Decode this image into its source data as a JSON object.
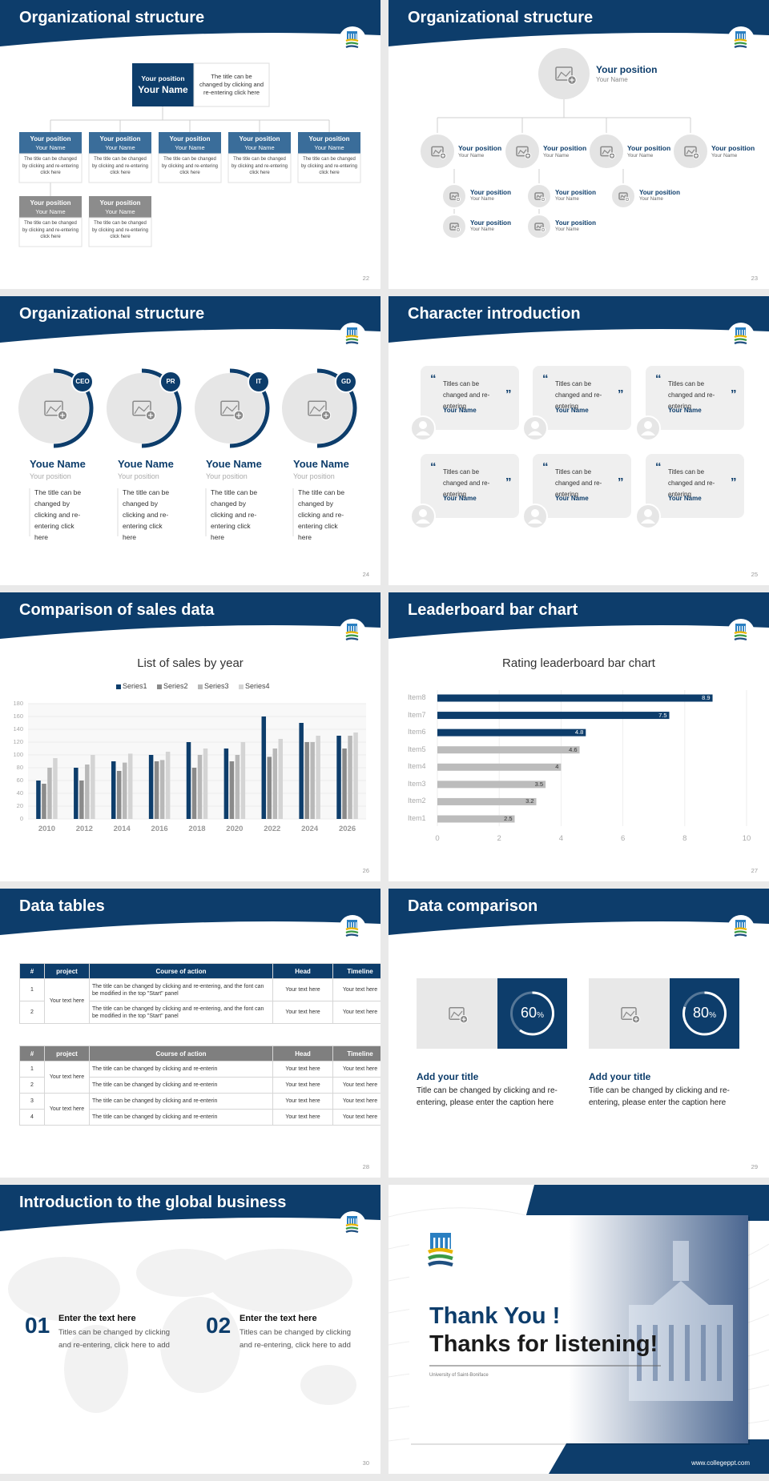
{
  "slides": [
    {
      "title": "Organizational structure",
      "page": "22",
      "top": {
        "position": "Your position",
        "name": "Your Name",
        "text": "The title can be changed by clicking and re-entering click here"
      },
      "members": [
        {
          "position": "Your position",
          "name": "Your Name",
          "text": "The title can be changed by clicking and re-entering click here"
        },
        {
          "position": "Your position",
          "name": "Your Name",
          "text": "The title can be changed by clicking and re-entering click here"
        },
        {
          "position": "Your position",
          "name": "Your Name",
          "text": "The title can be changed by clicking and re-entering click here"
        },
        {
          "position": "Your position",
          "name": "Your Name",
          "text": "The title can be changed by clicking and re-entering click here"
        },
        {
          "position": "Your position",
          "name": "Your Name",
          "text": "The title can be changed by clicking and re-entering click here"
        },
        {
          "position": "Your position",
          "name": "Your Name",
          "text": "The title can be changed by clicking and re-entering click here"
        },
        {
          "position": "Your position",
          "name": "Your Name",
          "text": "The title can be changed by clicking and re-entering click here"
        }
      ]
    },
    {
      "title": "Organizational structure",
      "page": "23",
      "top": {
        "position": "Your position",
        "name": "Your Name"
      },
      "groups": [
        {
          "position": "Your position",
          "name": "Your Name",
          "members": [
            {
              "position": "Your position",
              "name": "Your Name"
            },
            {
              "position": "Your position",
              "name": "Your Name"
            }
          ]
        },
        {
          "position": "Your position",
          "name": "Your Name",
          "members": [
            {
              "position": "Your position",
              "name": "Your Name"
            },
            {
              "position": "Your position",
              "name": "Your Name"
            }
          ]
        },
        {
          "position": "Your position",
          "name": "Your Name",
          "members": [
            {
              "position": "Your position",
              "name": "Your Name"
            }
          ]
        },
        {
          "position": "Your position",
          "name": "Your Name"
        }
      ]
    },
    {
      "title": "Organizational structure",
      "page": "24",
      "people": [
        {
          "role": "CEO",
          "name": "Youe Name",
          "position": "Your position",
          "text": "The title can be changed by clicking and re-entering click here"
        },
        {
          "role": "PR",
          "name": "Youe Name",
          "position": "Your position",
          "text": "The title can be changed by clicking and re-entering click here"
        },
        {
          "role": "IT",
          "name": "Youe Name",
          "position": "Your position",
          "text": "The title can be changed by clicking and re-entering click here"
        },
        {
          "role": "GD",
          "name": "Youe Name",
          "position": "Your position",
          "text": "The title can be changed by clicking and re-entering click here"
        }
      ]
    },
    {
      "title": "Character introduction",
      "page": "25",
      "quote_marks": [
        "“",
        "”"
      ],
      "quotes": [
        {
          "text": "Titles can be changed and re-entering",
          "name": "Your Name"
        },
        {
          "text": "Titles can be changed and re-entering",
          "name": "Your Name"
        },
        {
          "text": "Titles can be changed and re-entering",
          "name": "Your Name"
        },
        {
          "text": "Titles can be changed and re-entering",
          "name": "Your Name"
        },
        {
          "text": "Titles can be changed and re-entering",
          "name": "Your Name"
        },
        {
          "text": "Titles can be changed and re-entering",
          "name": "Your Name"
        }
      ]
    },
    {
      "title": "Comparison of sales data",
      "page": "26",
      "chart_data": {
        "type": "bar",
        "title": "List of sales by year",
        "legend": "top",
        "grid": true,
        "categories": [
          "2010",
          "2012",
          "2014",
          "2016",
          "2018",
          "2020",
          "2022",
          "2024",
          "2026"
        ],
        "series": [
          {
            "name": "Series1",
            "color": "#0d3d6b",
            "values": [
              60,
              80,
              90,
              100,
              120,
              110,
              160,
              150,
              130
            ]
          },
          {
            "name": "Series2",
            "color": "#8a8a8a",
            "values": [
              55,
              60,
              75,
              90,
              80,
              90,
              97,
              120,
              110
            ]
          },
          {
            "name": "Series3",
            "color": "#b8b8b8",
            "values": [
              80,
              85,
              88,
              92,
              100,
              100,
              110,
              120,
              130
            ]
          },
          {
            "name": "Series4",
            "color": "#d4d4d4",
            "values": [
              95,
              100,
              102,
              105,
              110,
              120,
              125,
              130,
              135
            ]
          }
        ],
        "ylim": [
          0,
          180
        ],
        "yticks": [
          0,
          20,
          40,
          60,
          80,
          100,
          120,
          140,
          160,
          180
        ]
      }
    },
    {
      "title": "Leaderboard bar chart",
      "page": "27",
      "chart_data": {
        "type": "hbar",
        "title": "Rating leaderboard bar chart",
        "grid": true,
        "categories": [
          "Item1",
          "Item2",
          "Item3",
          "Item4",
          "Item5",
          "Item6",
          "Item7",
          "Item8"
        ],
        "values": [
          2.5,
          3.2,
          3.5,
          4,
          4.6,
          4.8,
          7.5,
          8.9
        ],
        "colors": [
          "#bcbcbc",
          "#bcbcbc",
          "#bcbcbc",
          "#bcbcbc",
          "#bcbcbc",
          "#0d3d6b",
          "#0d3d6b",
          "#0d3d6b"
        ],
        "xlim": [
          0,
          10
        ],
        "xticks": [
          0,
          2,
          4,
          6,
          8,
          10
        ]
      }
    },
    {
      "title": "Data tables",
      "page": "28",
      "tables": [
        {
          "header": [
            "#",
            "project",
            "Course of action",
            "Head",
            "Timeline"
          ],
          "groups": [
            {
              "project": "Your text here",
              "rows": [
                {
                  "num": "1",
                  "action": "The title can be changed by clicking and re-entering, and the font can be modified in the top \"Start\" panel",
                  "head": "Your text here",
                  "timeline": "Your text here"
                },
                {
                  "num": "2",
                  "action": "The title can be changed by clicking and re-entering, and the font can be modified in the top \"Start\" panel",
                  "head": "Your text here",
                  "timeline": "Your text here"
                }
              ]
            }
          ]
        },
        {
          "header": [
            "#",
            "project",
            "Course of action",
            "Head",
            "Timeline"
          ],
          "groups": [
            {
              "project": "Your text here",
              "rows": [
                {
                  "num": "1",
                  "action": "The title can be changed by clicking and re-enterin",
                  "head": "Your text here",
                  "timeline": "Your text here"
                },
                {
                  "num": "2",
                  "action": "The title can be changed by clicking and re-enterin",
                  "head": "Your text here",
                  "timeline": "Your text here"
                }
              ]
            },
            {
              "project": "Your text here",
              "rows": [
                {
                  "num": "3",
                  "action": "The title can be changed by clicking and re-enterin",
                  "head": "Your text here",
                  "timeline": "Your text here"
                },
                {
                  "num": "4",
                  "action": "The title can be changed by clicking and re-enterin",
                  "head": "Your text here",
                  "timeline": "Your text here"
                }
              ]
            }
          ]
        }
      ]
    },
    {
      "title": "Data comparison",
      "page": "29",
      "items": [
        {
          "percent": {
            "value": 60,
            "unit": "%"
          },
          "title": "Add your title",
          "text": "Title can be changed by clicking and re-entering, please enter the caption here"
        },
        {
          "percent": {
            "value": 80,
            "unit": "%"
          },
          "title": "Add your title",
          "text": "Title can be changed by clicking and re-entering, please enter the caption here"
        }
      ]
    },
    {
      "title": "Introduction to the global business",
      "page": "30",
      "items": [
        {
          "number": "01",
          "title": "Enter the text here",
          "text": "Titles can be changed by clicking and re-entering, click here to add"
        },
        {
          "number": "02",
          "title": "Enter the text here",
          "text": "Titles can be changed by clicking and re-entering, click here to add"
        }
      ]
    },
    {
      "thanks": [
        "Thank You !",
        "Thanks for listening!"
      ],
      "university": "University of Saint-Boniface",
      "website": "www.collegeppt.com"
    }
  ]
}
